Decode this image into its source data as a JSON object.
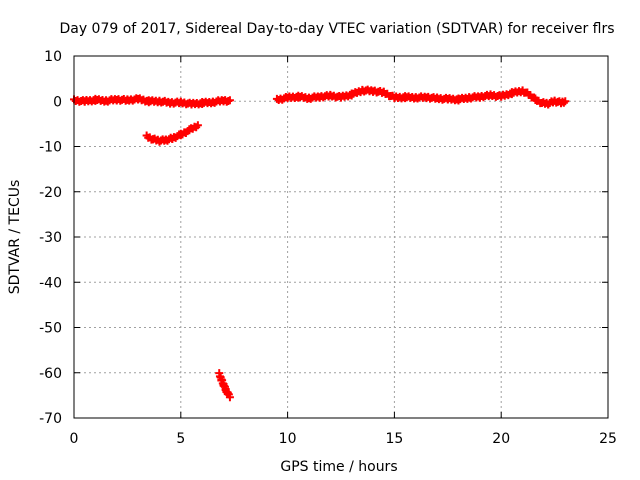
{
  "chart_data": {
    "type": "scatter",
    "title": "Day 079 of 2017, Sidereal Day-to-day VTEC variation (SDTVAR) for receiver flrs",
    "xlabel": "GPS time / hours",
    "ylabel": "SDTVAR / TECUs",
    "xlim": [
      0,
      25
    ],
    "ylim": [
      -70,
      10
    ],
    "xticks": [
      0,
      5,
      10,
      15,
      20,
      25
    ],
    "yticks": [
      10,
      0,
      -10,
      -20,
      -30,
      -40,
      -50,
      -60,
      -70
    ],
    "grid": true,
    "marker": "plus",
    "color": "#ff0000",
    "series": [
      {
        "segments": [
          {
            "x": [
              0.0,
              0.5,
              1.0,
              1.5,
              2.0,
              2.5,
              3.0,
              3.5,
              4.0,
              4.5,
              5.0,
              5.5,
              6.0,
              6.5,
              7.0,
              7.3
            ],
            "y": [
              0.2,
              0.0,
              0.3,
              0.1,
              0.4,
              0.2,
              0.5,
              0.0,
              0.0,
              -0.3,
              -0.3,
              -0.6,
              -0.4,
              -0.2,
              0.2,
              0.0
            ]
          },
          {
            "x": [
              3.4,
              3.7,
              4.0,
              4.3,
              4.6,
              5.0,
              5.4,
              5.8
            ],
            "y": [
              -7.8,
              -8.4,
              -8.7,
              -8.6,
              -8.2,
              -7.4,
              -6.4,
              -5.3
            ]
          },
          {
            "x": [
              6.8,
              6.9,
              7.0,
              7.1,
              7.2,
              7.3
            ],
            "y": [
              -60.3,
              -61.5,
              -62.6,
              -63.7,
              -64.6,
              -65.2
            ]
          },
          {
            "x": [
              9.5,
              10.0,
              10.5,
              11.0,
              11.5,
              12.0,
              12.5,
              13.0,
              13.5,
              14.0,
              14.5,
              15.0,
              15.5,
              16.0,
              16.5,
              17.0,
              17.5,
              18.0,
              18.5,
              19.0,
              19.5,
              20.0,
              20.5,
              21.0,
              21.3,
              21.6,
              21.9,
              22.2,
              22.5,
              22.8,
              23.0
            ],
            "y": [
              0.3,
              0.8,
              1.0,
              0.7,
              1.0,
              1.2,
              0.9,
              1.5,
              2.4,
              2.3,
              1.9,
              0.8,
              0.9,
              0.8,
              0.9,
              0.6,
              0.5,
              0.4,
              0.8,
              1.0,
              1.3,
              1.1,
              1.8,
              2.3,
              1.5,
              0.4,
              -0.4,
              -0.5,
              0.0,
              -0.3,
              0.0
            ]
          }
        ]
      }
    ]
  }
}
